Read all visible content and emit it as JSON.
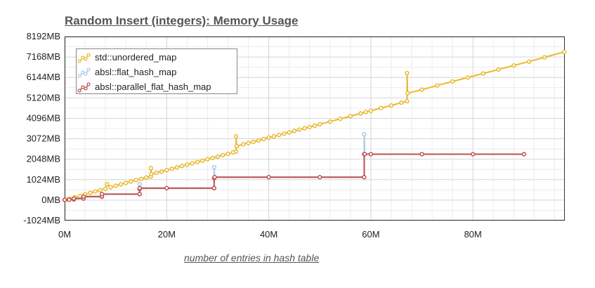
{
  "chart_data": {
    "type": "line",
    "title": "Random Insert (integers): Memory Usage",
    "xlabel": "number of entries in hash table",
    "ylabel": "",
    "xlim": [
      0,
      98000000
    ],
    "ylim": [
      -1024,
      8192
    ],
    "x_ticks": [
      {
        "value": 0,
        "label": "0M"
      },
      {
        "value": 20000000,
        "label": "20M"
      },
      {
        "value": 40000000,
        "label": "40M"
      },
      {
        "value": 60000000,
        "label": "60M"
      },
      {
        "value": 80000000,
        "label": "80M"
      }
    ],
    "y_ticks": [
      {
        "value": 8192,
        "label": "8192MB"
      },
      {
        "value": 7168,
        "label": "7168MB"
      },
      {
        "value": 6144,
        "label": "6144MB"
      },
      {
        "value": 5120,
        "label": "5120MB"
      },
      {
        "value": 4096,
        "label": "4096MB"
      },
      {
        "value": 3072,
        "label": "3072MB"
      },
      {
        "value": 2048,
        "label": "2048MB"
      },
      {
        "value": 1024,
        "label": "1024MB"
      },
      {
        "value": 0,
        "label": "0MB"
      },
      {
        "value": -1024,
        "label": "-1024MB"
      }
    ],
    "grid": true,
    "legend_position": "top-left",
    "series": [
      {
        "name": "std::unordered_map",
        "color": "#e8b92f",
        "points": [
          [
            0,
            20
          ],
          [
            500000,
            40
          ],
          [
            1000000,
            70
          ],
          [
            2000000,
            140
          ],
          [
            3000000,
            200
          ],
          [
            4000000,
            290
          ],
          [
            5000000,
            360
          ],
          [
            6000000,
            430
          ],
          [
            7000000,
            500
          ],
          [
            8000000,
            570
          ],
          [
            8300000,
            800
          ],
          [
            9000000,
            640
          ],
          [
            10000000,
            720
          ],
          [
            11000000,
            790
          ],
          [
            12000000,
            860
          ],
          [
            13000000,
            930
          ],
          [
            14000000,
            1000
          ],
          [
            15000000,
            1060
          ],
          [
            16000000,
            1130
          ],
          [
            16900000,
            1180
          ],
          [
            16900000,
            1600
          ],
          [
            17000000,
            1300
          ],
          [
            18000000,
            1370
          ],
          [
            19000000,
            1430
          ],
          [
            20000000,
            1500
          ],
          [
            21000000,
            1570
          ],
          [
            22000000,
            1640
          ],
          [
            23000000,
            1710
          ],
          [
            24000000,
            1780
          ],
          [
            25000000,
            1840
          ],
          [
            26000000,
            1910
          ],
          [
            27000000,
            1980
          ],
          [
            28000000,
            2050
          ],
          [
            29000000,
            2110
          ],
          [
            30000000,
            2180
          ],
          [
            31000000,
            2250
          ],
          [
            32000000,
            2320
          ],
          [
            33000000,
            2390
          ],
          [
            33600000,
            2430
          ],
          [
            33600000,
            3200
          ],
          [
            33700000,
            2700
          ],
          [
            35000000,
            2800
          ],
          [
            36000000,
            2860
          ],
          [
            37000000,
            2920
          ],
          [
            38000000,
            2990
          ],
          [
            39000000,
            3060
          ],
          [
            40000000,
            3130
          ],
          [
            41000000,
            3190
          ],
          [
            42000000,
            3260
          ],
          [
            43000000,
            3330
          ],
          [
            44000000,
            3390
          ],
          [
            45000000,
            3460
          ],
          [
            46000000,
            3530
          ],
          [
            47000000,
            3600
          ],
          [
            48000000,
            3660
          ],
          [
            49000000,
            3730
          ],
          [
            50000000,
            3800
          ],
          [
            52000000,
            3930
          ],
          [
            54000000,
            4070
          ],
          [
            56000000,
            4200
          ],
          [
            58000000,
            4340
          ],
          [
            59000000,
            4410
          ],
          [
            60000000,
            4470
          ],
          [
            62000000,
            4610
          ],
          [
            64000000,
            4740
          ],
          [
            66000000,
            4880
          ],
          [
            67100000,
            4950
          ],
          [
            67100000,
            6360
          ],
          [
            67200000,
            5350
          ],
          [
            70000000,
            5530
          ],
          [
            73000000,
            5740
          ],
          [
            76000000,
            5940
          ],
          [
            79000000,
            6140
          ],
          [
            82000000,
            6340
          ],
          [
            85000000,
            6540
          ],
          [
            88000000,
            6740
          ],
          [
            91000000,
            6940
          ],
          [
            94000000,
            7150
          ],
          [
            97900000,
            7420
          ]
        ]
      },
      {
        "name": "absl::flat_hash_map",
        "color": "#a8cbea",
        "points": [
          [
            0,
            16
          ],
          [
            1800000,
            40
          ],
          [
            1800000,
            80
          ],
          [
            3700000,
            80
          ],
          [
            3700000,
            160
          ],
          [
            7300000,
            160
          ],
          [
            7300000,
            300
          ],
          [
            14700000,
            300
          ],
          [
            14700000,
            800
          ],
          [
            14700000,
            600
          ],
          [
            29300000,
            600
          ],
          [
            29300000,
            1650
          ],
          [
            29400000,
            1150
          ],
          [
            58700000,
            1150
          ],
          [
            58700000,
            3300
          ],
          [
            58800000,
            2300
          ],
          [
            90000000,
            2300
          ]
        ]
      },
      {
        "name": "absl::parallel_flat_hash_map",
        "color": "#c0504d",
        "points": [
          [
            0,
            8
          ],
          [
            900000,
            20
          ],
          [
            1800000,
            40
          ],
          [
            1800000,
            80
          ],
          [
            3700000,
            80
          ],
          [
            3700000,
            180
          ],
          [
            7300000,
            180
          ],
          [
            7300000,
            300
          ],
          [
            14700000,
            300
          ],
          [
            14700000,
            560
          ],
          [
            14700000,
            600
          ],
          [
            20000000,
            600
          ],
          [
            29300000,
            600
          ],
          [
            29300000,
            1100
          ],
          [
            29400000,
            1150
          ],
          [
            40000000,
            1150
          ],
          [
            50000000,
            1150
          ],
          [
            58700000,
            1150
          ],
          [
            58700000,
            2300
          ],
          [
            58800000,
            2300
          ],
          [
            60000000,
            2300
          ],
          [
            70000000,
            2300
          ],
          [
            80000000,
            2300
          ],
          [
            90000000,
            2300
          ]
        ]
      }
    ]
  }
}
